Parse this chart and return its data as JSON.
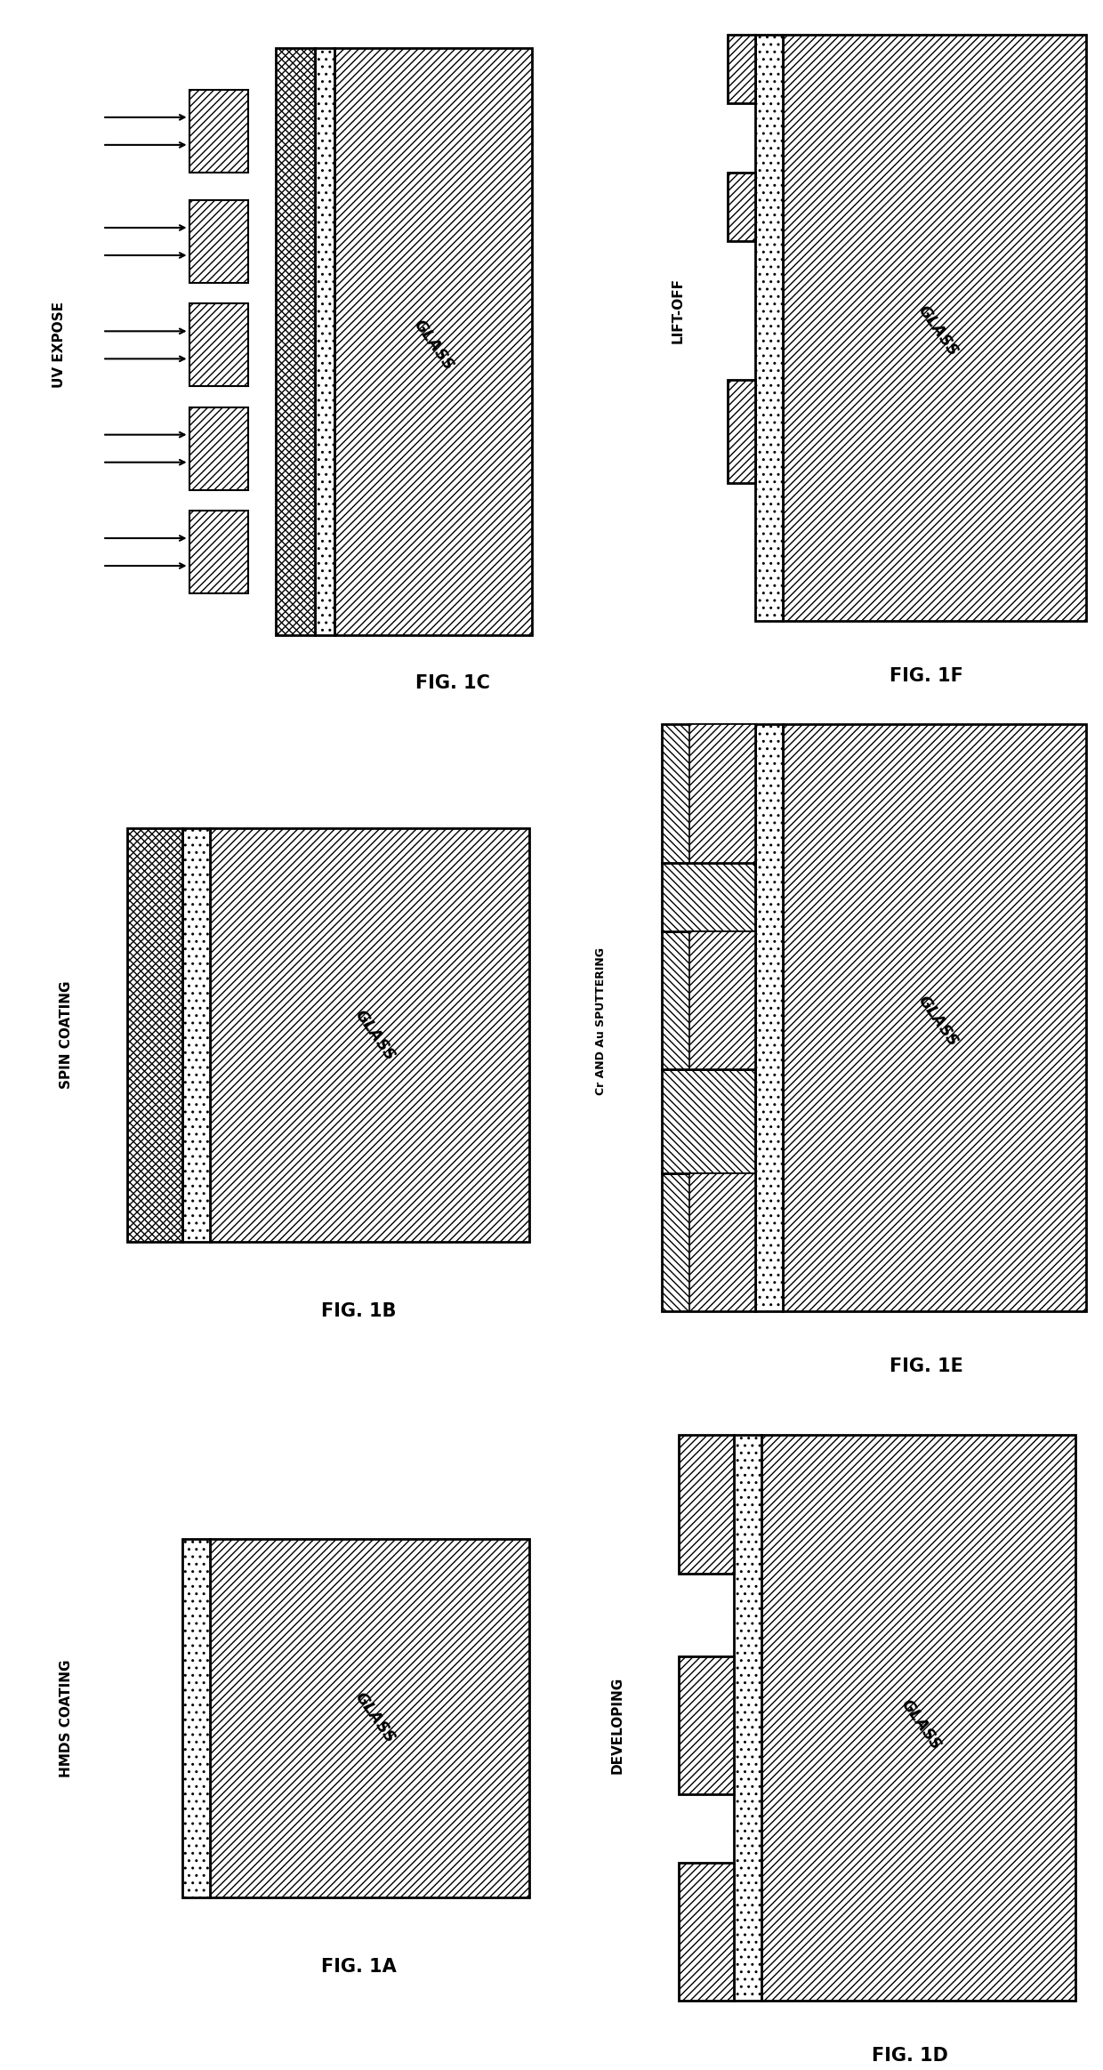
{
  "bg_color": "#ffffff",
  "panels": [
    {
      "id": "1C",
      "label": "FIG. 1C",
      "process": "UV EXPOSE",
      "col": 0,
      "row": 0
    },
    {
      "id": "1F",
      "label": "FIG. 1F",
      "process": "LIFT-OFF",
      "col": 1,
      "row": 0
    },
    {
      "id": "1B",
      "label": "FIG. 1B",
      "process": "SPIN COATING",
      "col": 0,
      "row": 1
    },
    {
      "id": "1E",
      "label": "FIG. 1E",
      "process": "Cr AND Au SPUTTERING",
      "col": 1,
      "row": 1
    },
    {
      "id": "1A",
      "label": "FIG. 1A",
      "process": "HMDS COATING",
      "col": 0,
      "row": 2
    },
    {
      "id": "1D",
      "label": "FIG. 1D",
      "process": "DEVELOPING",
      "col": 1,
      "row": 2
    }
  ]
}
